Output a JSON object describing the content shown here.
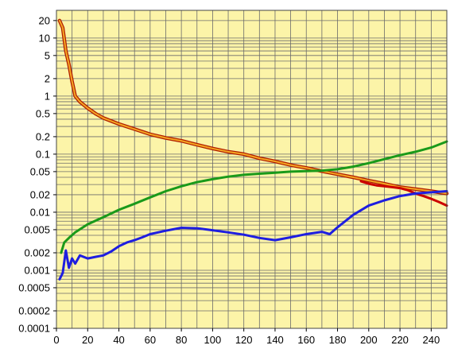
{
  "chart_data": {
    "type": "line",
    "title": "",
    "xlabel": "",
    "ylabel": "",
    "xlim": [
      0,
      250
    ],
    "ylim": [
      0.0001,
      30
    ],
    "yscale": "log",
    "grid": true,
    "background_color": "#fcf4a8",
    "grid_color": "#6b6b6b",
    "x_ticks": [
      0,
      20,
      40,
      60,
      80,
      100,
      120,
      140,
      160,
      180,
      200,
      220,
      240
    ],
    "x_tick_labels": [
      "0",
      "20",
      "40",
      "60",
      "80",
      "100",
      "120",
      "140",
      "160",
      "180",
      "200",
      "220",
      "240"
    ],
    "y_ticks": [
      0.0001,
      0.0002,
      0.0005,
      0.001,
      0.002,
      0.005,
      0.01,
      0.02,
      0.05,
      0.1,
      0.2,
      0.5,
      1,
      2,
      5,
      10,
      20
    ],
    "y_tick_labels": [
      "0.0001",
      "0.0002",
      "0.0005",
      "0.001",
      "0.002",
      "0.005",
      "0.01",
      "0.02",
      "0.05",
      "0.1",
      "0.2",
      "0.5",
      "1",
      "2",
      "5",
      "10",
      "20"
    ],
    "series": [
      {
        "color": "#f5a623",
        "outline_color": "#b01e00",
        "x": [
          2,
          4,
          6,
          8,
          10,
          12,
          15,
          20,
          25,
          30,
          40,
          50,
          60,
          70,
          80,
          90,
          100,
          110,
          120,
          130,
          140,
          150,
          160,
          170,
          180,
          190,
          200,
          210,
          220,
          230,
          240,
          250
        ],
        "y": [
          20,
          15,
          6,
          3.5,
          1.8,
          1.0,
          0.8,
          0.62,
          0.5,
          0.42,
          0.33,
          0.27,
          0.22,
          0.19,
          0.17,
          0.145,
          0.125,
          0.11,
          0.1,
          0.085,
          0.075,
          0.065,
          0.058,
          0.051,
          0.045,
          0.04,
          0.035,
          0.031,
          0.027,
          0.025,
          0.023,
          0.021
        ]
      },
      {
        "color": "#cc0000",
        "x": [
          195,
          200,
          205,
          210,
          215,
          220,
          225,
          230,
          235,
          240,
          245,
          250
        ],
        "y": [
          0.034,
          0.031,
          0.029,
          0.028,
          0.027,
          0.026,
          0.024,
          0.021,
          0.019,
          0.017,
          0.015,
          0.013
        ]
      },
      {
        "color": "#1a9a1a",
        "x": [
          3,
          5,
          8,
          12,
          20,
          30,
          40,
          50,
          60,
          70,
          80,
          90,
          100,
          110,
          120,
          130,
          140,
          150,
          160,
          170,
          180,
          190,
          200,
          210,
          220,
          230,
          240,
          250
        ],
        "y": [
          0.002,
          0.003,
          0.0036,
          0.0045,
          0.0062,
          0.0082,
          0.011,
          0.014,
          0.018,
          0.023,
          0.028,
          0.033,
          0.037,
          0.041,
          0.044,
          0.046,
          0.048,
          0.05,
          0.051,
          0.052,
          0.055,
          0.061,
          0.07,
          0.082,
          0.096,
          0.11,
          0.13,
          0.165
        ]
      },
      {
        "color": "#1e1ee0",
        "x": [
          2,
          4,
          6,
          8,
          10,
          12,
          15,
          20,
          25,
          30,
          35,
          40,
          45,
          50,
          55,
          60,
          70,
          80,
          90,
          100,
          110,
          120,
          130,
          140,
          150,
          160,
          170,
          175,
          180,
          190,
          200,
          210,
          220,
          230,
          240,
          250
        ],
        "y": [
          0.0007,
          0.0009,
          0.0022,
          0.0011,
          0.0016,
          0.0013,
          0.0018,
          0.0016,
          0.0017,
          0.0018,
          0.0021,
          0.0026,
          0.003,
          0.0033,
          0.0037,
          0.0042,
          0.0048,
          0.0054,
          0.0053,
          0.0049,
          0.0045,
          0.0041,
          0.0036,
          0.0033,
          0.0037,
          0.0042,
          0.0046,
          0.0042,
          0.0055,
          0.009,
          0.013,
          0.016,
          0.019,
          0.021,
          0.022,
          0.023
        ]
      }
    ]
  }
}
